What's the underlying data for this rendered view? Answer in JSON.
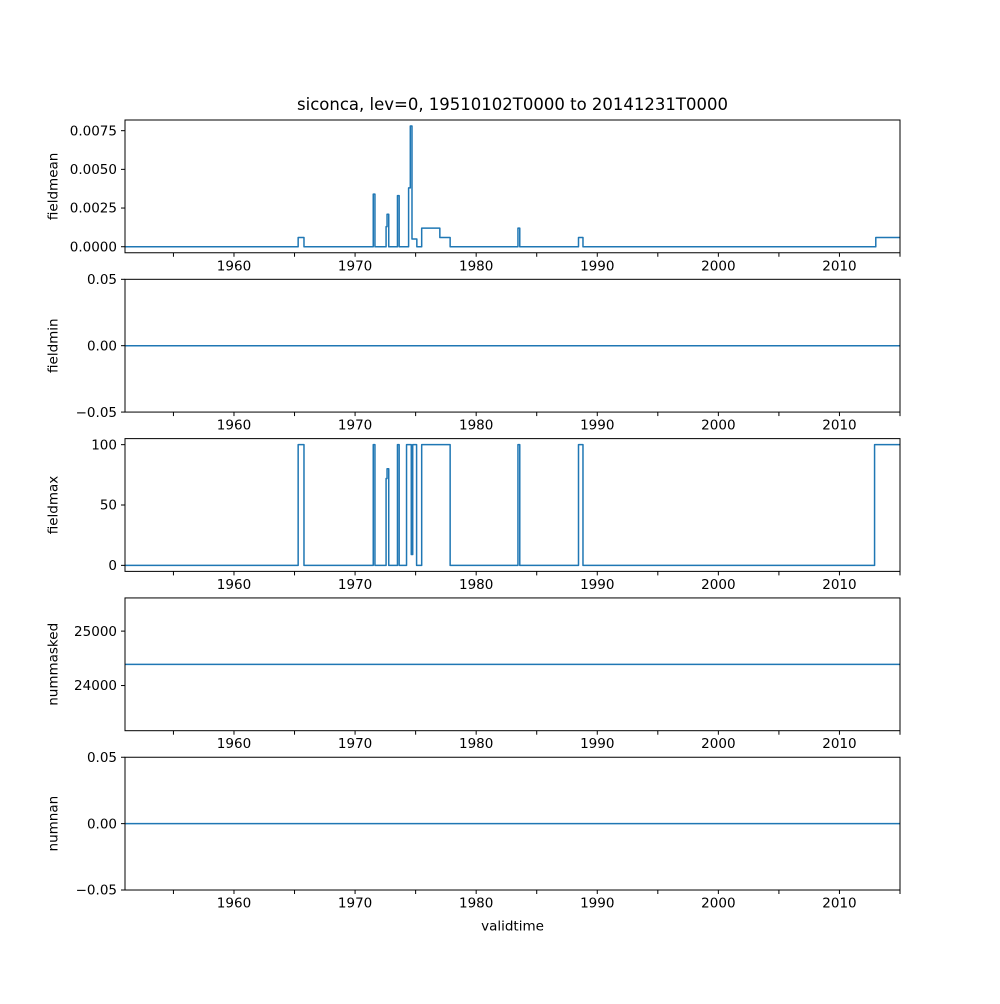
{
  "figure": {
    "background": "#ffffff",
    "axis_color": "#000000",
    "text_color": "#000000"
  },
  "chart_data": {
    "type": "line",
    "title": "siconca, lev=0, 19510102T0000 to 20141231T0000",
    "xlabel": "validtime",
    "grid": false,
    "legend": false,
    "line_color": "#1f77b4",
    "x_axis": {
      "range": [
        1951.0,
        2015.0
      ],
      "major_ticks": [
        1960,
        1970,
        1980,
        1990,
        2000,
        2010
      ],
      "major_tick_labels": [
        "1960",
        "1970",
        "1980",
        "1990",
        "2000",
        "2010"
      ],
      "minor_ticks": [
        1955,
        1965,
        1975,
        1985,
        1995,
        2005,
        2015
      ]
    },
    "subplots": [
      {
        "ylabel": "fieldmean",
        "ylim": [
          -0.00039,
          0.00819
        ],
        "yticks": [
          {
            "value": 0.0,
            "label": "0.0000"
          },
          {
            "value": 0.0025,
            "label": "0.0025"
          },
          {
            "value": 0.005,
            "label": "0.0050"
          },
          {
            "value": 0.0075,
            "label": "0.0075"
          }
        ],
        "series_steps": [
          [
            1951.0,
            0
          ],
          [
            1965.3,
            0.0006
          ],
          [
            1965.78,
            0
          ],
          [
            1971.5,
            0.0034
          ],
          [
            1971.64,
            0
          ],
          [
            1972.56,
            0.0013
          ],
          [
            1972.64,
            0.0021
          ],
          [
            1972.78,
            0
          ],
          [
            1973.5,
            0.0033
          ],
          [
            1973.64,
            0
          ],
          [
            1974.42,
            0.0038
          ],
          [
            1974.56,
            0.0078
          ],
          [
            1974.7,
            0.0005
          ],
          [
            1975.1,
            0
          ],
          [
            1975.5,
            0.0012
          ],
          [
            1977.0,
            0.0006
          ],
          [
            1977.85,
            0
          ],
          [
            1983.45,
            0.0012
          ],
          [
            1983.6,
            0
          ],
          [
            1988.45,
            0.0006
          ],
          [
            1988.82,
            0
          ],
          [
            2013.0,
            0.0006
          ]
        ]
      },
      {
        "ylabel": "fieldmin",
        "ylim": [
          -0.05,
          0.05
        ],
        "yticks": [
          {
            "value": -0.05,
            "label": "−0.05"
          },
          {
            "value": 0.0,
            "label": "0.00"
          },
          {
            "value": 0.05,
            "label": "0.05"
          }
        ],
        "series_steps": [
          [
            1951.0,
            0
          ]
        ]
      },
      {
        "ylabel": "fieldmax",
        "ylim": [
          -5,
          105
        ],
        "yticks": [
          {
            "value": 0,
            "label": "0"
          },
          {
            "value": 50,
            "label": "50"
          },
          {
            "value": 100,
            "label": "100"
          }
        ],
        "series_steps": [
          [
            1951.0,
            0
          ],
          [
            1965.3,
            100
          ],
          [
            1965.78,
            0
          ],
          [
            1971.5,
            100
          ],
          [
            1971.64,
            0
          ],
          [
            1972.56,
            72
          ],
          [
            1972.64,
            80
          ],
          [
            1972.78,
            0
          ],
          [
            1973.5,
            100
          ],
          [
            1973.64,
            0
          ],
          [
            1974.25,
            100
          ],
          [
            1974.64,
            9
          ],
          [
            1974.76,
            100
          ],
          [
            1975.08,
            0
          ],
          [
            1975.5,
            100
          ],
          [
            1977.85,
            0
          ],
          [
            1983.45,
            100
          ],
          [
            1983.6,
            0
          ],
          [
            1988.45,
            100
          ],
          [
            1988.82,
            0
          ],
          [
            2012.9,
            100
          ]
        ]
      },
      {
        "ylabel": "nummasked",
        "ylim": [
          23170.5,
          25609.5
        ],
        "yticks": [
          {
            "value": 24000,
            "label": "24000"
          },
          {
            "value": 25000,
            "label": "25000"
          }
        ],
        "series_steps": [
          [
            1951.0,
            24390
          ]
        ]
      },
      {
        "ylabel": "numnan",
        "ylim": [
          -0.05,
          0.05
        ],
        "yticks": [
          {
            "value": -0.05,
            "label": "−0.05"
          },
          {
            "value": 0.0,
            "label": "0.00"
          },
          {
            "value": 0.05,
            "label": "0.05"
          }
        ],
        "series_steps": [
          [
            1951.0,
            0
          ]
        ]
      }
    ]
  }
}
